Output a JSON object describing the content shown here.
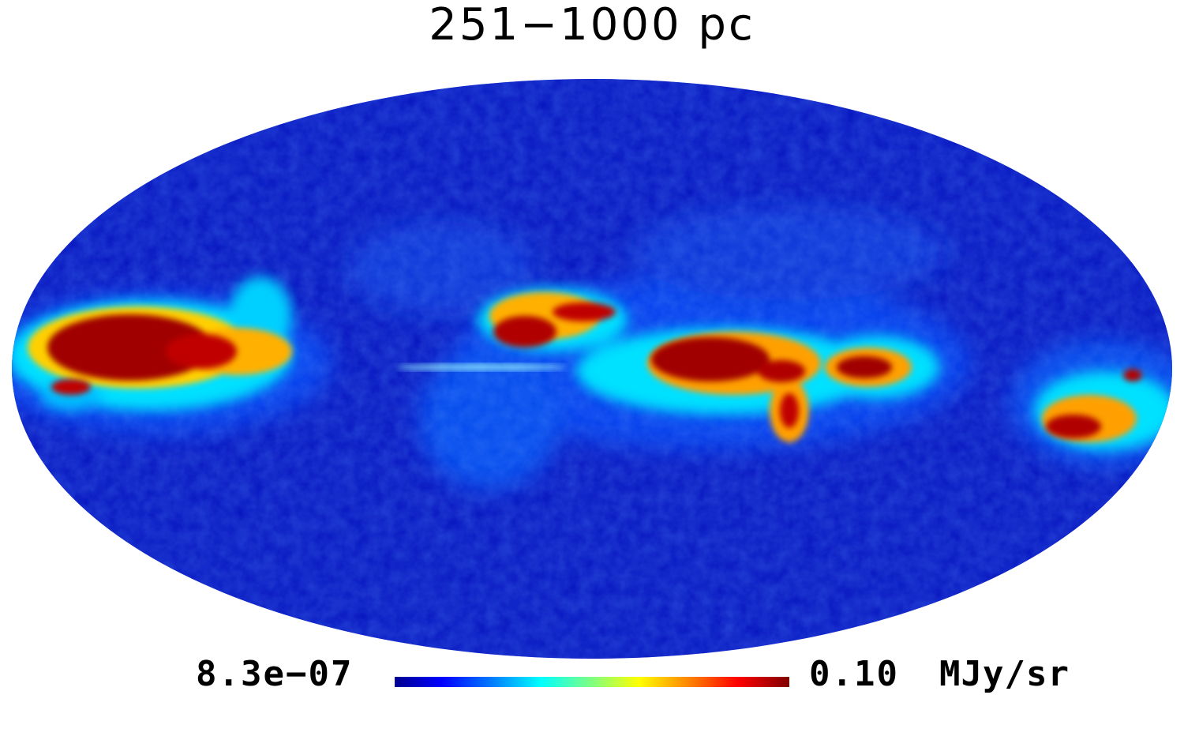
{
  "title": "251−1000 pc",
  "colorbar": {
    "min_label": "8.3e−07",
    "max_label": "0.10",
    "unit": "MJy/sr",
    "colormap": [
      "#00008f",
      "#0000ff",
      "#0080ff",
      "#00ffff",
      "#80ff80",
      "#ffff00",
      "#ff8000",
      "#ff0000",
      "#800000"
    ]
  },
  "map": {
    "projection": "mollweide",
    "background_color": "#0a1fc8"
  }
}
